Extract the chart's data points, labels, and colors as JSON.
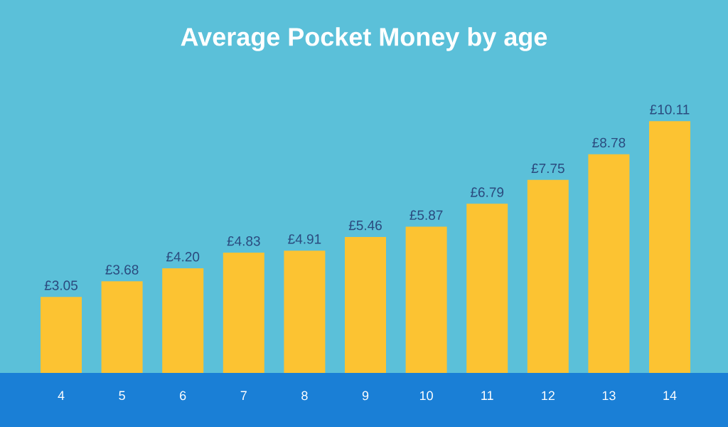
{
  "chart_data": {
    "type": "bar",
    "title": "Average Pocket Money by age",
    "categories": [
      "4",
      "5",
      "6",
      "7",
      "8",
      "9",
      "10",
      "11",
      "12",
      "13",
      "14"
    ],
    "values": [
      3.05,
      3.68,
      4.2,
      4.83,
      4.91,
      5.46,
      5.87,
      6.79,
      7.75,
      8.78,
      10.11
    ],
    "value_labels": [
      "£3.05",
      "£3.68",
      "£4.20",
      "£4.83",
      "£4.91",
      "£5.46",
      "£5.87",
      "£6.79",
      "£7.75",
      "£8.78",
      "£10.11"
    ],
    "color": "#fcc332"
  }
}
